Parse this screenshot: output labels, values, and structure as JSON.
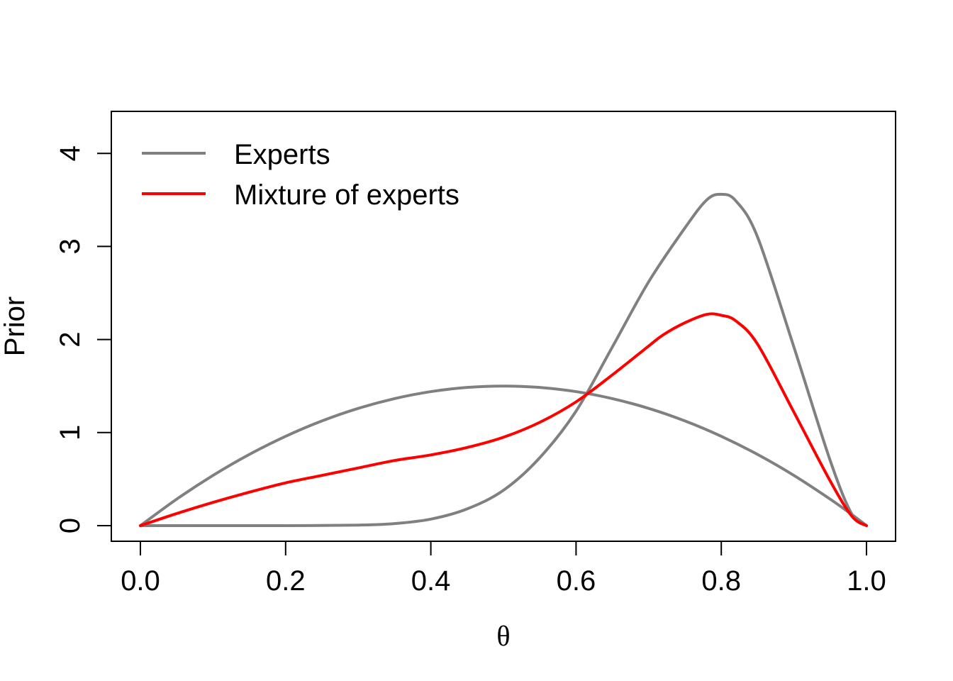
{
  "chart_data": {
    "type": "line",
    "title": "",
    "xlabel": "θ",
    "ylabel": "Prior",
    "xlim": [
      0,
      1
    ],
    "ylim": [
      0,
      4.3
    ],
    "xticks": [
      "0.0",
      "0.2",
      "0.4",
      "0.6",
      "0.8",
      "1.0"
    ],
    "yticks": [
      "0",
      "1",
      "2",
      "3",
      "4"
    ],
    "grid": false,
    "legend_position": "top-left",
    "legend": [
      {
        "label": "Experts",
        "color": "#808080"
      },
      {
        "label": "Mixture of experts",
        "color": "#ff0000"
      }
    ],
    "series": [
      {
        "name": "Experts",
        "color": "#808080",
        "x": [
          0,
          0.05,
          0.1,
          0.15,
          0.2,
          0.25,
          0.3,
          0.35,
          0.4,
          0.45,
          0.5,
          0.55,
          0.6,
          0.65,
          0.7,
          0.75,
          0.8,
          0.85,
          0.9,
          0.95,
          0.98,
          1.0
        ],
        "values": [
          0,
          0.285,
          0.54,
          0.765,
          0.96,
          1.125,
          1.26,
          1.365,
          1.44,
          1.485,
          1.5,
          1.485,
          1.44,
          1.365,
          1.26,
          1.125,
          0.96,
          0.765,
          0.54,
          0.285,
          0.118,
          0
        ]
      },
      {
        "name": "Experts",
        "color": "#808080",
        "x": [
          0,
          0.1,
          0.2,
          0.3,
          0.35,
          0.4,
          0.45,
          0.5,
          0.55,
          0.6,
          0.65,
          0.7,
          0.75,
          0.78,
          0.8,
          0.82,
          0.85,
          0.9,
          0.95,
          0.98,
          1.0
        ],
        "values": [
          0,
          0,
          0,
          0.006,
          0.022,
          0.07,
          0.18,
          0.38,
          0.73,
          1.23,
          1.92,
          2.62,
          3.2,
          3.5,
          3.56,
          3.49,
          3.1,
          1.92,
          0.7,
          0.12,
          0
        ]
      },
      {
        "name": "Mixture of experts",
        "color": "#ff0000",
        "x": [
          0,
          0.05,
          0.1,
          0.15,
          0.2,
          0.25,
          0.3,
          0.35,
          0.4,
          0.45,
          0.5,
          0.55,
          0.6,
          0.65,
          0.7,
          0.72,
          0.75,
          0.78,
          0.8,
          0.82,
          0.85,
          0.9,
          0.95,
          0.98,
          1.0
        ],
        "values": [
          0,
          0.13,
          0.25,
          0.36,
          0.46,
          0.54,
          0.62,
          0.7,
          0.76,
          0.84,
          0.95,
          1.11,
          1.33,
          1.62,
          1.93,
          2.05,
          2.18,
          2.27,
          2.26,
          2.2,
          1.95,
          1.22,
          0.48,
          0.1,
          0
        ]
      }
    ]
  }
}
